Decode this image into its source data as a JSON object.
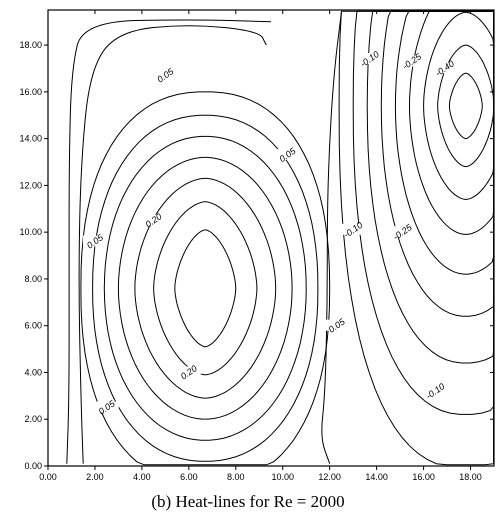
{
  "chart_data": {
    "type": "contour",
    "caption": "(b) Heat-lines for Re = 2000",
    "xlim": [
      0,
      19
    ],
    "ylim": [
      0,
      19.5
    ],
    "x_ticks": [
      "0.00",
      "2.00",
      "4.00",
      "6.00",
      "8.00",
      "10.00",
      "12.00",
      "14.00",
      "16.00",
      "18.00"
    ],
    "y_ticks": [
      "0.00",
      "2.00",
      "4.00",
      "6.00",
      "8.00",
      "10.00",
      "12.00",
      "14.00",
      "16.00",
      "18.00"
    ],
    "contour_levels_labeled": [
      "0.05",
      "0.20",
      "-0.10",
      "-0.25",
      "-0.40"
    ],
    "labels": [
      {
        "text": "0.05",
        "x": 5.0,
        "y": 16.7
      },
      {
        "text": "0.05",
        "x": 10.2,
        "y": 13.3
      },
      {
        "text": "0.05",
        "x": 2.0,
        "y": 9.6
      },
      {
        "text": "0.20",
        "x": 4.5,
        "y": 10.5
      },
      {
        "text": "0.05",
        "x": 12.3,
        "y": 6.0
      },
      {
        "text": "0.20",
        "x": 6.0,
        "y": 4.0
      },
      {
        "text": "0.05",
        "x": 2.5,
        "y": 2.5
      },
      {
        "text": "-0.10",
        "x": 13.7,
        "y": 17.4
      },
      {
        "text": "-0.25",
        "x": 15.5,
        "y": 17.3
      },
      {
        "text": "-0.40",
        "x": 16.9,
        "y": 17.0
      },
      {
        "text": "-0.10",
        "x": 13.0,
        "y": 10.1
      },
      {
        "text": "-0.25",
        "x": 15.1,
        "y": 10.0
      },
      {
        "text": "-0.10",
        "x": 16.5,
        "y": 3.2
      }
    ],
    "left_vortex": {
      "center": [
        6.7,
        7.6
      ],
      "rings": [
        {
          "rx": 1.3,
          "ry": 2.5
        },
        {
          "rx": 2.2,
          "ry": 3.7
        },
        {
          "rx": 3.0,
          "ry": 4.7
        },
        {
          "rx": 3.7,
          "ry": 5.6
        },
        {
          "rx": 4.3,
          "ry": 6.5
        },
        {
          "rx": 4.8,
          "ry": 7.4
        },
        {
          "rx": 5.3,
          "ry": 8.4
        }
      ]
    },
    "right_vortex": {
      "center": [
        17.8,
        15.4
      ],
      "rings": [
        {
          "rx": 0.7,
          "ry": 1.4
        },
        {
          "rx": 1.2,
          "ry": 2.6
        },
        {
          "rx": 1.8,
          "ry": 4.0
        },
        {
          "rx": 2.4,
          "ry": 5.5
        },
        {
          "rx": 3.0,
          "ry": 7.2
        },
        {
          "rx": 3.6,
          "ry": 9.0
        },
        {
          "rx": 4.2,
          "ry": 11.0
        },
        {
          "rx": 4.8,
          "ry": 13.2
        },
        {
          "rx": 5.4,
          "ry": 15.5
        }
      ]
    },
    "bounding_lines": [
      {
        "name": "left-wall-contour",
        "points": [
          [
            0.8,
            0.1
          ],
          [
            0.9,
            3
          ],
          [
            0.9,
            8
          ],
          [
            0.9,
            13
          ],
          [
            1.0,
            17
          ],
          [
            1.5,
            19.0
          ],
          [
            6,
            19.1
          ],
          [
            9.5,
            19.0
          ]
        ]
      },
      {
        "name": "left-wall-contour-2",
        "points": [
          [
            1.5,
            0.1
          ],
          [
            1.4,
            3
          ],
          [
            1.3,
            8
          ],
          [
            1.4,
            13
          ],
          [
            1.8,
            17
          ],
          [
            3,
            18.6
          ],
          [
            6,
            18.9
          ],
          [
            9.0,
            18.6
          ],
          [
            9.3,
            18.0
          ]
        ]
      },
      {
        "name": "separatrix",
        "points": [
          [
            12.0,
            0.1
          ],
          [
            11.6,
            1.2
          ],
          [
            11.8,
            3
          ],
          [
            11.9,
            7
          ],
          [
            11.9,
            11
          ],
          [
            12.0,
            14
          ],
          [
            12.2,
            17
          ],
          [
            12.5,
            19.4
          ]
        ]
      }
    ]
  }
}
